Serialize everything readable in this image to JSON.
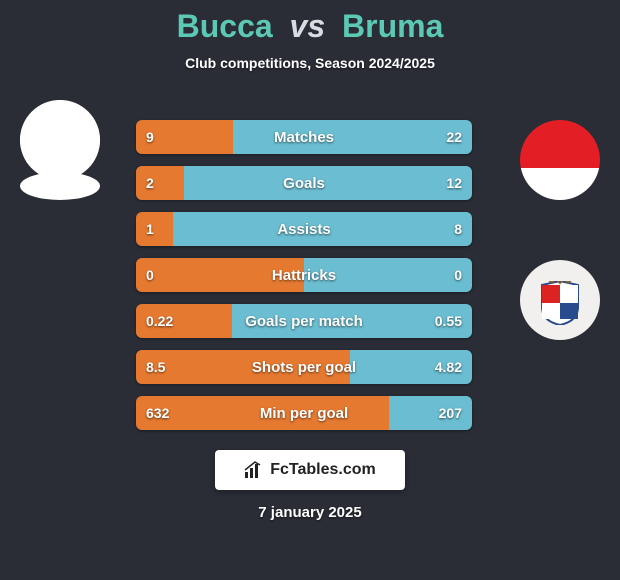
{
  "title": {
    "p1": "Bucca",
    "vs": "vs",
    "p2": "Bruma"
  },
  "subtitle": "Club competitions, Season 2024/2025",
  "colors": {
    "bg": "#2a2d36",
    "left_bar": "#e57930",
    "right_bar": "#6bbdd1",
    "accent": "#5cc9b5",
    "text_light": "#ffffff",
    "flag_red": "#e31e24"
  },
  "bars": [
    {
      "label": "Matches",
      "left": "9",
      "right": "22",
      "left_w": 29.0,
      "right_w": 71.0
    },
    {
      "label": "Goals",
      "left": "2",
      "right": "12",
      "left_w": 14.3,
      "right_w": 85.7
    },
    {
      "label": "Assists",
      "left": "1",
      "right": "8",
      "left_w": 11.1,
      "right_w": 88.9
    },
    {
      "label": "Hattricks",
      "left": "0",
      "right": "0",
      "left_w": 50.0,
      "right_w": 50.0
    },
    {
      "label": "Goals per match",
      "left": "0.22",
      "right": "0.55",
      "left_w": 28.6,
      "right_w": 71.4
    },
    {
      "label": "Shots per goal",
      "left": "8.5",
      "right": "4.82",
      "left_w": 63.8,
      "right_w": 36.2
    },
    {
      "label": "Min per goal",
      "left": "632",
      "right": "207",
      "left_w": 75.3,
      "right_w": 24.7
    }
  ],
  "branding": "FcTables.com",
  "date": "7 january 2025"
}
